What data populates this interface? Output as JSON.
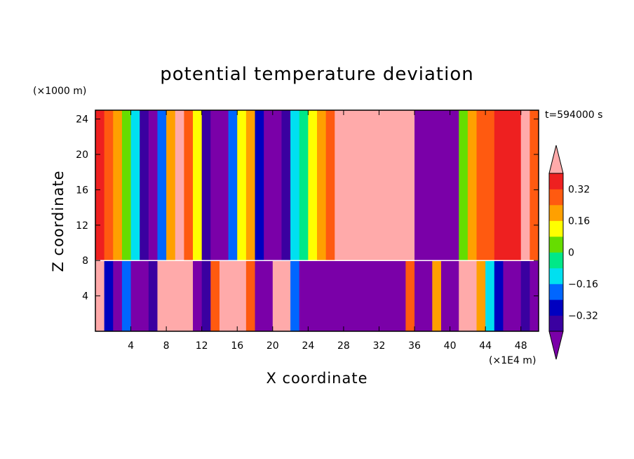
{
  "chart_data": {
    "type": "heatmap",
    "title": "potential temperature deviation",
    "xlabel": "X coordinate",
    "ylabel": "Z coordinate",
    "x_unit": "(×1E4 m)",
    "y_unit": "(×1000 m)",
    "time_label": "t=594000 s",
    "xlim": [
      0,
      50
    ],
    "ylim": [
      0,
      25
    ],
    "x_ticks": [
      4,
      8,
      12,
      16,
      20,
      24,
      28,
      32,
      36,
      40,
      44,
      48
    ],
    "y_ticks": [
      4,
      8,
      12,
      16,
      20,
      24
    ],
    "layer_interface_z": 8,
    "colorbar": {
      "levels": [
        -0.4,
        -0.32,
        -0.24,
        -0.16,
        -0.08,
        0,
        0.08,
        0.16,
        0.24,
        0.32,
        0.4
      ],
      "tick_labels": [
        "0.32",
        "0.16",
        "0",
        "−0.16",
        "−0.32"
      ],
      "tick_values": [
        0.32,
        0.16,
        0,
        -0.16,
        -0.32
      ],
      "colors": [
        "#7a00a8",
        "#3a00a0",
        "#0000c0",
        "#0066ff",
        "#00e0f0",
        "#00e888",
        "#66dd00",
        "#ffff00",
        "#ffa000",
        "#ff5a10",
        "#ee2020",
        "#ffaaaa"
      ],
      "extend": "both"
    },
    "upper_columns": [
      {
        "x": 0,
        "value": 0.33
      },
      {
        "x": 1,
        "value": 0.26
      },
      {
        "x": 2,
        "value": 0.16
      },
      {
        "x": 3,
        "value": 0.06
      },
      {
        "x": 4,
        "value": -0.12
      },
      {
        "x": 5,
        "value": -0.34
      },
      {
        "x": 6,
        "value": -0.45
      },
      {
        "x": 7,
        "value": -0.22
      },
      {
        "x": 8,
        "value": 0.2
      },
      {
        "x": 9,
        "value": 0.42
      },
      {
        "x": 10,
        "value": 0.3
      },
      {
        "x": 11,
        "value": 0.1
      },
      {
        "x": 12,
        "value": -0.4
      },
      {
        "x": 13,
        "value": -0.45
      },
      {
        "x": 14,
        "value": -0.45
      },
      {
        "x": 15,
        "value": -0.2
      },
      {
        "x": 16,
        "value": 0.12
      },
      {
        "x": 17,
        "value": 0.2
      },
      {
        "x": 18,
        "value": -0.25
      },
      {
        "x": 19,
        "value": -0.45
      },
      {
        "x": 20,
        "value": -0.45
      },
      {
        "x": 21,
        "value": -0.35
      },
      {
        "x": 22,
        "value": -0.16
      },
      {
        "x": 23,
        "value": -0.08
      },
      {
        "x": 24,
        "value": 0.1
      },
      {
        "x": 25,
        "value": 0.22
      },
      {
        "x": 26,
        "value": 0.3
      },
      {
        "x": 27,
        "value": 0.42
      },
      {
        "x": 28,
        "value": 0.45
      },
      {
        "x": 29,
        "value": 0.45
      },
      {
        "x": 30,
        "value": 0.45
      },
      {
        "x": 31,
        "value": 0.45
      },
      {
        "x": 32,
        "value": 0.45
      },
      {
        "x": 33,
        "value": 0.45
      },
      {
        "x": 34,
        "value": 0.45
      },
      {
        "x": 35,
        "value": 0.42
      },
      {
        "x": 36,
        "value": -0.45
      },
      {
        "x": 37,
        "value": -0.45
      },
      {
        "x": 38,
        "value": -0.45
      },
      {
        "x": 39,
        "value": -0.45
      },
      {
        "x": 40,
        "value": -0.45
      },
      {
        "x": 41,
        "value": 0.0
      },
      {
        "x": 42,
        "value": 0.18
      },
      {
        "x": 43,
        "value": 0.26
      },
      {
        "x": 44,
        "value": 0.3
      },
      {
        "x": 45,
        "value": 0.33
      },
      {
        "x": 46,
        "value": 0.35
      },
      {
        "x": 47,
        "value": 0.38
      },
      {
        "x": 48,
        "value": 0.42
      },
      {
        "x": 49,
        "value": 0.3
      }
    ],
    "lower_columns": [
      {
        "x": 0,
        "value": 0.42
      },
      {
        "x": 1,
        "value": -0.3
      },
      {
        "x": 2,
        "value": -0.45
      },
      {
        "x": 3,
        "value": -0.2
      },
      {
        "x": 4,
        "value": -0.45
      },
      {
        "x": 5,
        "value": -0.45
      },
      {
        "x": 6,
        "value": -0.4
      },
      {
        "x": 7,
        "value": 0.42
      },
      {
        "x": 8,
        "value": 0.45
      },
      {
        "x": 9,
        "value": 0.45
      },
      {
        "x": 10,
        "value": 0.42
      },
      {
        "x": 11,
        "value": -0.45
      },
      {
        "x": 12,
        "value": -0.4
      },
      {
        "x": 13,
        "value": 0.3
      },
      {
        "x": 14,
        "value": 0.45
      },
      {
        "x": 15,
        "value": 0.45
      },
      {
        "x": 16,
        "value": 0.45
      },
      {
        "x": 17,
        "value": 0.3
      },
      {
        "x": 18,
        "value": -0.45
      },
      {
        "x": 19,
        "value": -0.45
      },
      {
        "x": 20,
        "value": 0.4
      },
      {
        "x": 21,
        "value": 0.45
      },
      {
        "x": 22,
        "value": -0.2
      },
      {
        "x": 23,
        "value": -0.45
      },
      {
        "x": 24,
        "value": -0.45
      },
      {
        "x": 25,
        "value": -0.45
      },
      {
        "x": 26,
        "value": -0.45
      },
      {
        "x": 27,
        "value": -0.45
      },
      {
        "x": 28,
        "value": -0.45
      },
      {
        "x": 29,
        "value": -0.45
      },
      {
        "x": 30,
        "value": -0.45
      },
      {
        "x": 31,
        "value": -0.45
      },
      {
        "x": 32,
        "value": -0.45
      },
      {
        "x": 33,
        "value": -0.45
      },
      {
        "x": 34,
        "value": -0.45
      },
      {
        "x": 35,
        "value": 0.3
      },
      {
        "x": 36,
        "value": -0.45
      },
      {
        "x": 37,
        "value": -0.45
      },
      {
        "x": 38,
        "value": 0.2
      },
      {
        "x": 39,
        "value": -0.45
      },
      {
        "x": 40,
        "value": -0.45
      },
      {
        "x": 41,
        "value": 0.45
      },
      {
        "x": 42,
        "value": 0.45
      },
      {
        "x": 43,
        "value": 0.2
      },
      {
        "x": 44,
        "value": -0.1
      },
      {
        "x": 45,
        "value": -0.3
      },
      {
        "x": 46,
        "value": -0.45
      },
      {
        "x": 47,
        "value": -0.45
      },
      {
        "x": 48,
        "value": -0.4
      },
      {
        "x": 49,
        "value": -0.45
      }
    ]
  }
}
